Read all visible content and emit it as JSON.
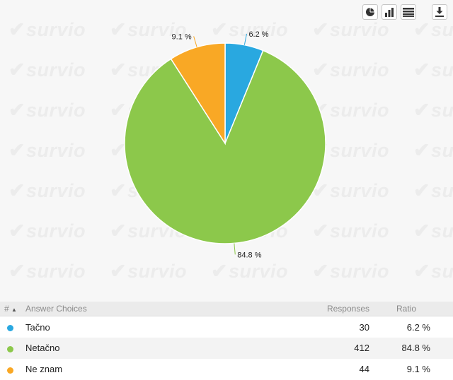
{
  "watermark": {
    "text": "survio"
  },
  "toolbar": {
    "buttons": [
      {
        "name": "pie-chart-view-button",
        "icon": "pie-chart-icon"
      },
      {
        "name": "bar-chart-view-button",
        "icon": "bar-chart-icon"
      },
      {
        "name": "table-view-button",
        "icon": "table-list-icon"
      },
      {
        "name": "download-button",
        "icon": "download-icon"
      }
    ]
  },
  "chart_data": {
    "type": "pie",
    "title": "",
    "categories": [
      "Tačno",
      "Netačno",
      "Ne znam"
    ],
    "values": [
      30,
      412,
      44
    ],
    "percent_labels": [
      "6.2 %",
      "84.8 %",
      "9.1 %"
    ],
    "colors": [
      "#29a8e0",
      "#8cc84b",
      "#f9a825"
    ],
    "legend": "none",
    "start_angle": "top, clockwise"
  },
  "table": {
    "headers": {
      "sort": "#",
      "choices": "Answer Choices",
      "responses": "Responses",
      "ratio": "Ratio"
    },
    "rows": [
      {
        "label": "Tačno",
        "color": "#29a8e0",
        "responses": "30",
        "ratio": "6.2 %"
      },
      {
        "label": "Netačno",
        "color": "#8cc84b",
        "responses": "412",
        "ratio": "84.8 %"
      },
      {
        "label": "Ne znam",
        "color": "#f9a825",
        "responses": "44",
        "ratio": "9.1 %"
      }
    ]
  }
}
